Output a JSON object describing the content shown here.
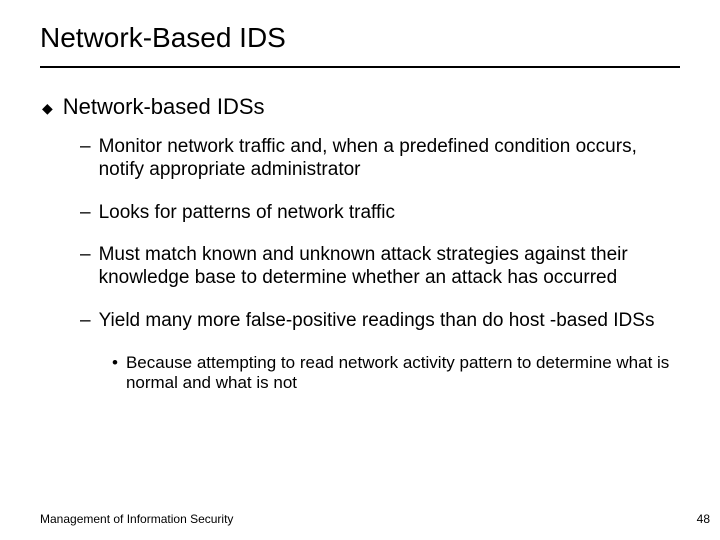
{
  "slide": {
    "title": "Network-Based IDS",
    "bullet1": {
      "text": "Network-based IDSs",
      "subs": [
        "Monitor network traffic and, when a predefined condition occurs, notify appropriate administrator",
        "Looks for patterns of network traffic",
        "Must match known and unknown attack strategies against their knowledge base to determine whether an attack has occurred",
        "Yield many more false-positive readings than do host -based IDSs"
      ],
      "subsub": "Because attempting to read network activity pattern to determine what is normal and what is not"
    },
    "footer": "Management of Information Security",
    "page": "48"
  },
  "style": {
    "bg": "#ffffff",
    "text": "#000000",
    "title_fontsize": 28,
    "body_fontsize": 19,
    "sub_fontsize": 17,
    "footer_fontsize": 12,
    "rule_color": "#000000"
  }
}
